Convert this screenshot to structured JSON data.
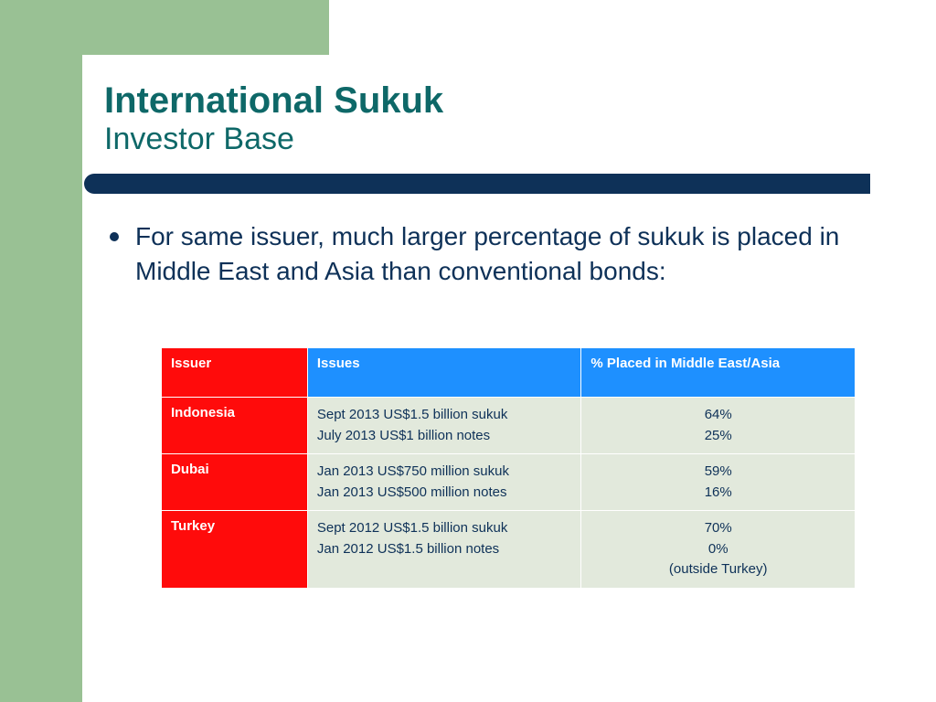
{
  "colors": {
    "side_band": "#99c194",
    "divider": "#0e3158",
    "title": "#0e6868",
    "text": "#0e3158",
    "header_red": "#ff0b0b",
    "header_blue": "#1e90ff",
    "cell_bg": "#e2e9dc",
    "white": "#ffffff"
  },
  "title": {
    "main": "International Sukuk",
    "sub": "Investor Base",
    "main_fontsize": 40,
    "sub_fontsize": 34
  },
  "bullet": {
    "text": "For same issuer, much larger percentage of sukuk is placed in Middle East and Asia than conventional bonds:",
    "fontsize": 28
  },
  "table": {
    "headers": {
      "issuer": "Issuer",
      "issues": "Issues",
      "placed": "% Placed in Middle East/Asia"
    },
    "header_fontsize": 15,
    "cell_fontsize": 15,
    "rows": [
      {
        "issuer": "Indonesia",
        "issues": [
          "Sept 2013 US$1.5 billion sukuk",
          "July 2013 US$1 billion notes"
        ],
        "placed": [
          "64%",
          "25%"
        ]
      },
      {
        "issuer": "Dubai",
        "issues": [
          "Jan 2013 US$750 million sukuk",
          "Jan 2013 US$500 million notes"
        ],
        "placed": [
          "59%",
          "16%"
        ]
      },
      {
        "issuer": "Turkey",
        "issues": [
          "Sept 2012 US$1.5 billion sukuk",
          "Jan 2012 US$1.5 billion notes"
        ],
        "placed": [
          "70%",
          "0%",
          "(outside Turkey)"
        ]
      }
    ]
  }
}
